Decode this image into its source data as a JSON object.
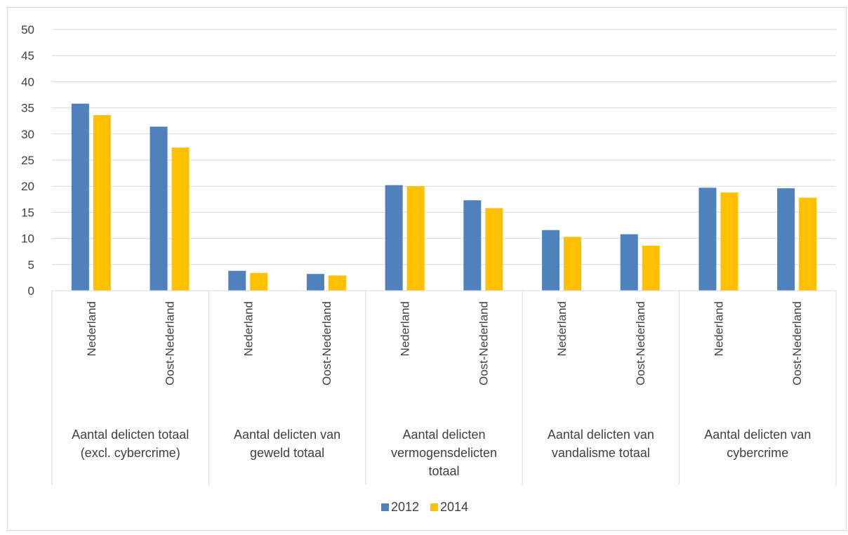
{
  "chart_data": {
    "type": "bar",
    "groups": [
      {
        "label": "Aantal delicten totaal (excl. cybercrime)",
        "label_lines": [
          "Aantal delicten totaal",
          "(excl. cybercrime)"
        ],
        "categories": [
          "Nederland",
          "Oost-Nederland"
        ]
      },
      {
        "label": "Aantal delicten van geweld totaal",
        "label_lines": [
          "Aantal delicten van",
          "geweld totaal"
        ],
        "categories": [
          "Nederland",
          "Oost-Nederland"
        ]
      },
      {
        "label": "Aantal delicten vermogensdelicten totaal",
        "label_lines": [
          "Aantal delicten",
          "vermogensdelicten",
          "totaal"
        ],
        "categories": [
          "Nederland",
          "Oost-Nederland"
        ]
      },
      {
        "label": "Aantal delicten van vandalisme totaal",
        "label_lines": [
          "Aantal delicten van",
          "vandalisme totaal"
        ],
        "categories": [
          "Nederland",
          "Oost-Nederland"
        ]
      },
      {
        "label": "Aantal delicten van cybercrime",
        "label_lines": [
          "Aantal delicten van",
          "cybercrime"
        ],
        "categories": [
          "Nederland",
          "Oost-Nederland"
        ]
      }
    ],
    "series": [
      {
        "name": "2012",
        "color": "#4f81bd",
        "values": [
          35.8,
          31.4,
          3.8,
          3.2,
          20.2,
          17.3,
          11.6,
          10.8,
          19.7,
          19.6
        ]
      },
      {
        "name": "2014",
        "color": "#ffc000",
        "values": [
          33.6,
          27.4,
          3.4,
          2.9,
          20.0,
          15.8,
          10.3,
          8.6,
          18.8,
          17.8
        ]
      }
    ],
    "ylim": [
      0,
      50
    ],
    "yticks": [
      0,
      5,
      10,
      15,
      20,
      25,
      30,
      35,
      40,
      45,
      50
    ],
    "grid": true,
    "legend": "bottom",
    "title": "",
    "xlabel": "",
    "ylabel": ""
  }
}
